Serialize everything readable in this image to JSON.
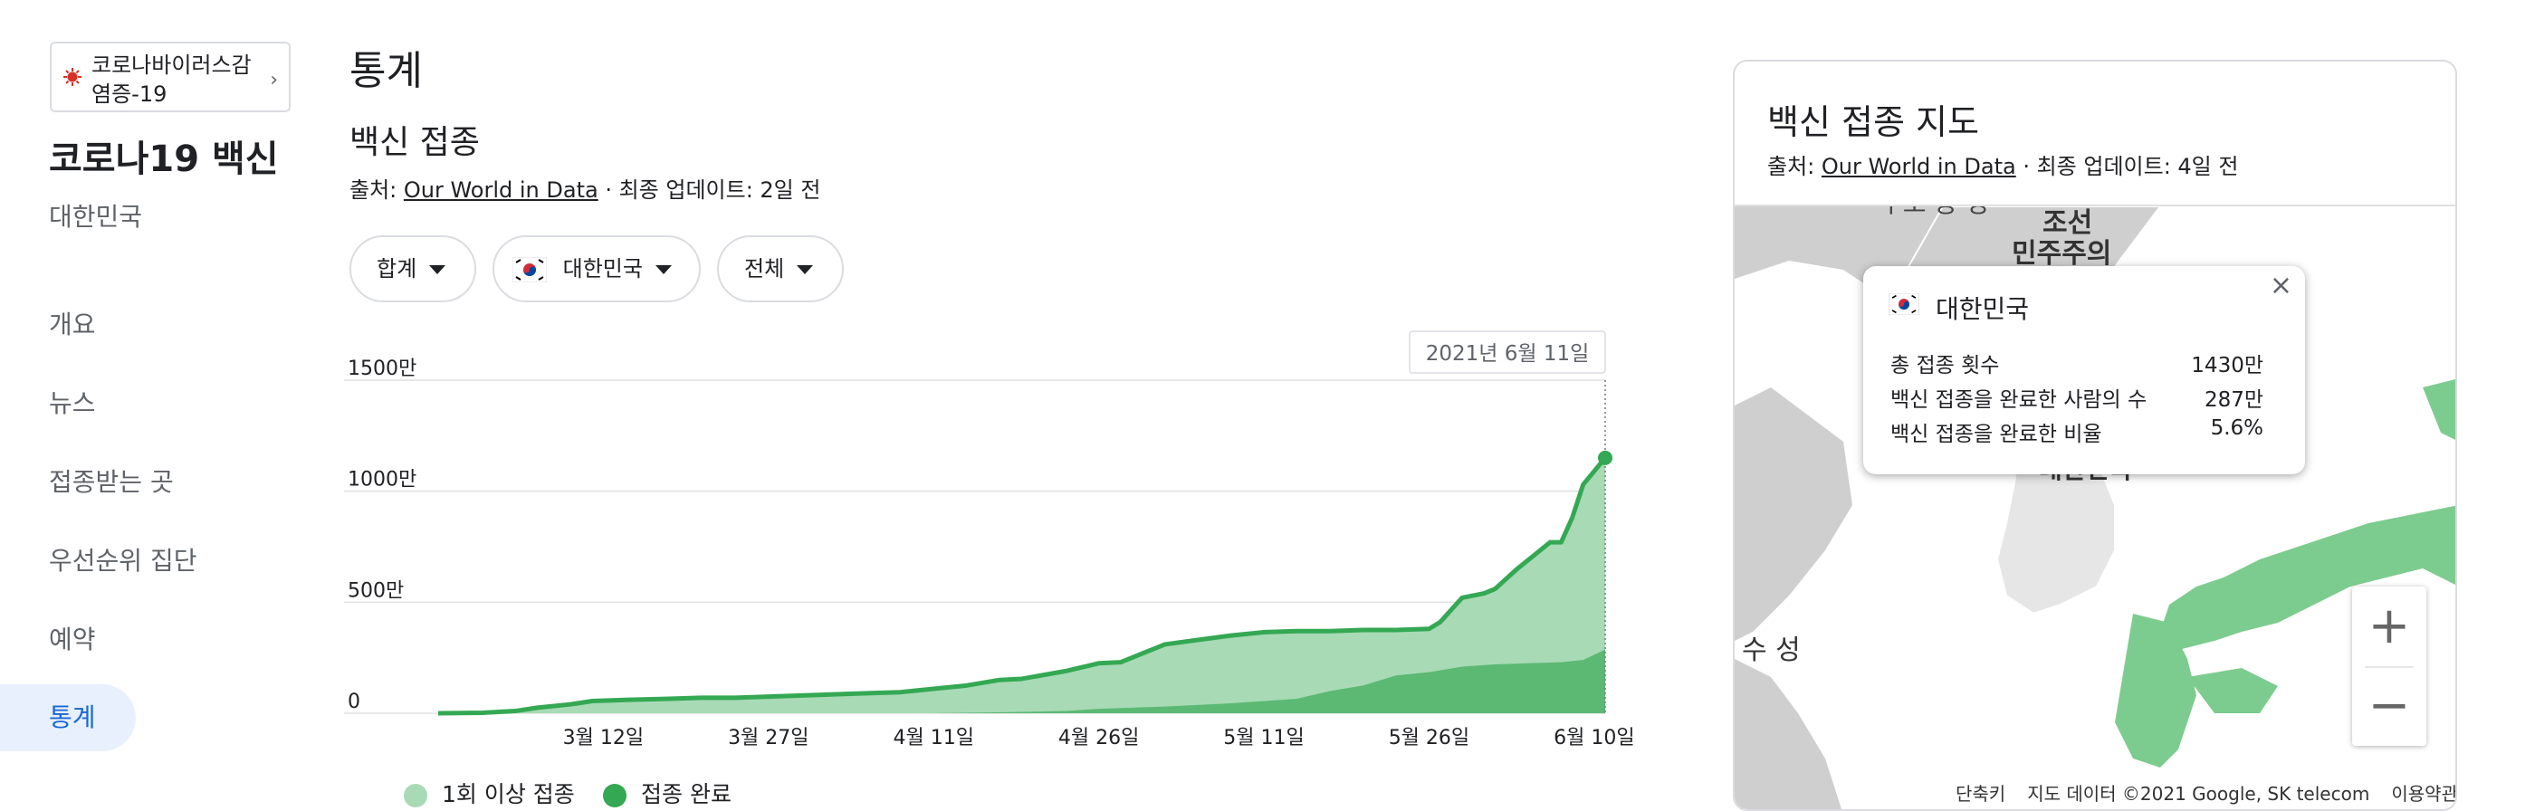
{
  "sidebar": {
    "topic_chip": "코로나바이러스감염증-19",
    "title": "코로나19 백신",
    "region": "대한민국",
    "nav": [
      "개요",
      "뉴스",
      "접종받는 곳",
      "우선순위 집단",
      "예약",
      "통계"
    ],
    "active_index": 5
  },
  "main": {
    "page_title": "통계",
    "section_title": "백신 접종",
    "source_prefix": "출처: ",
    "source_link": "Our World in Data",
    "source_suffix": " · 최종 업데이트: 2일 전",
    "filters": [
      "합계",
      "대한민국",
      "전체"
    ]
  },
  "chart_data": {
    "type": "area",
    "tooltip_date": "2021년 6월 11일",
    "y_ticks": [
      "0",
      "500만",
      "1000만",
      "1500만"
    ],
    "ylim": [
      0,
      15000000
    ],
    "x_tick_labels": [
      "3월 12일",
      "3월 27일",
      "4월 11일",
      "4월 26일",
      "5월 11일",
      "5월 26일",
      "6월 10일"
    ],
    "x_tick_days": [
      15,
      30,
      45,
      60,
      75,
      90,
      105
    ],
    "x_range_days": [
      0,
      106
    ],
    "series": [
      {
        "name": "1회 이상 접종",
        "color": "#a8dab5",
        "line_color": "#34a853",
        "points": [
          [
            0,
            0
          ],
          [
            4,
            20000
          ],
          [
            7,
            100000
          ],
          [
            9,
            250000
          ],
          [
            12,
            400000
          ],
          [
            14,
            550000
          ],
          [
            17,
            600000
          ],
          [
            21,
            650000
          ],
          [
            24,
            700000
          ],
          [
            27,
            700000
          ],
          [
            30,
            750000
          ],
          [
            33,
            800000
          ],
          [
            36,
            850000
          ],
          [
            39,
            900000
          ],
          [
            42,
            950000
          ],
          [
            45,
            1100000
          ],
          [
            48,
            1250000
          ],
          [
            51,
            1500000
          ],
          [
            53,
            1550000
          ],
          [
            57,
            1900000
          ],
          [
            60,
            2250000
          ],
          [
            62,
            2300000
          ],
          [
            63,
            2500000
          ],
          [
            66,
            3100000
          ],
          [
            69,
            3300000
          ],
          [
            72,
            3500000
          ],
          [
            75,
            3650000
          ],
          [
            78,
            3700000
          ],
          [
            81,
            3700000
          ],
          [
            84,
            3750000
          ],
          [
            87,
            3750000
          ],
          [
            90,
            3800000
          ],
          [
            91,
            4100000
          ],
          [
            93,
            5200000
          ],
          [
            95,
            5400000
          ],
          [
            96,
            5600000
          ],
          [
            98,
            6500000
          ],
          [
            100,
            7300000
          ],
          [
            101,
            7700000
          ],
          [
            102,
            7700000
          ],
          [
            103,
            8800000
          ],
          [
            104,
            10300000
          ],
          [
            106,
            11500000
          ]
        ]
      },
      {
        "name": "접종 완료",
        "color": "#5bb974",
        "line_color": "#34a853",
        "points": [
          [
            0,
            0
          ],
          [
            45,
            0
          ],
          [
            52,
            50000
          ],
          [
            57,
            100000
          ],
          [
            60,
            200000
          ],
          [
            66,
            300000
          ],
          [
            72,
            450000
          ],
          [
            78,
            650000
          ],
          [
            81,
            1000000
          ],
          [
            84,
            1250000
          ],
          [
            87,
            1700000
          ],
          [
            90,
            1850000
          ],
          [
            93,
            2100000
          ],
          [
            96,
            2200000
          ],
          [
            99,
            2250000
          ],
          [
            102,
            2300000
          ],
          [
            104,
            2400000
          ],
          [
            106,
            2870000
          ]
        ]
      }
    ]
  },
  "map_card": {
    "title": "백신 접종 지도",
    "source_prefix": "출처: ",
    "source_link": "Our World in Data",
    "source_suffix": " · 최종 업데이트: 4일 전",
    "labels": {
      "north_korea_1": "조선",
      "north_korea_2": "민주주의",
      "north_top": "구토 등 성",
      "south_korea": "대한민국",
      "province": "수 성"
    },
    "popup": {
      "country": "대한민국",
      "rows": [
        {
          "label": "총 접종 횟수",
          "value": "1430만"
        },
        {
          "label": "백신 접종을 완료한 사람의 수",
          "value": "287만"
        },
        {
          "label": "백신 접종을 완료한 비율",
          "value": "5.6%"
        }
      ]
    },
    "zoom_in": "+",
    "zoom_out": "−",
    "footer": {
      "shortcuts": "단축키",
      "map_data": "지도 데이터 ©2021 Google, SK telecom",
      "terms": "이용약관"
    }
  },
  "colors": {
    "accent": "#1967d2",
    "active_bg": "#e8f0fe",
    "green_line": "#34a853",
    "land_gray": "#cfcfcf",
    "land_green": "#7dcc8f"
  }
}
